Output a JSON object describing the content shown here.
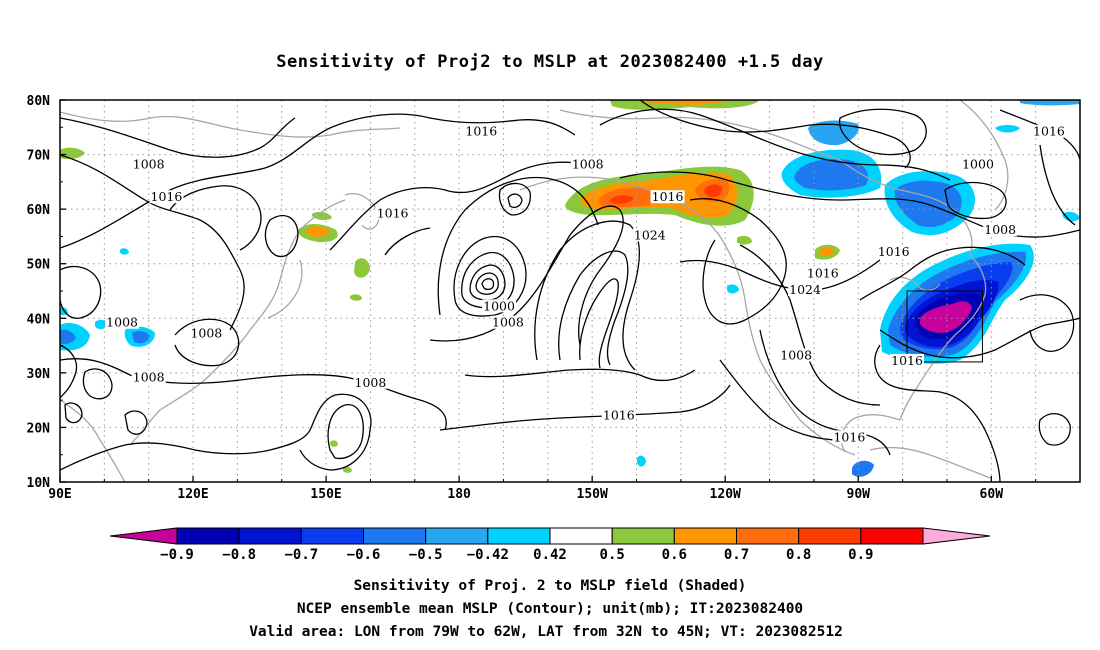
{
  "chart_data": {
    "type": "heatmap",
    "title": "Sensitivity of Proj2 to MSLP at 2023082400 +1.5 day",
    "x_axis": {
      "ticks": [
        "90E",
        "120E",
        "150E",
        "180",
        "150W",
        "120W",
        "90W",
        "60W"
      ],
      "range_lon_east": [
        90,
        320
      ]
    },
    "y_axis": {
      "ticks": [
        "10N",
        "20N",
        "30N",
        "40N",
        "50N",
        "60N",
        "70N",
        "80N"
      ],
      "range_lat": [
        10,
        80
      ]
    },
    "grid": "dotted",
    "colorbar": {
      "placement": "bottom",
      "tick_labels": [
        "-0.9",
        "-0.8",
        "-0.7",
        "-0.6",
        "-0.5",
        "-0.42",
        "0.42",
        "0.5",
        "0.6",
        "0.7",
        "0.8",
        "0.9"
      ],
      "bins": [
        {
          "range": "< -0.9",
          "color": "#c8009c"
        },
        {
          "range": "-0.9 to -0.8",
          "color": "#0000b4"
        },
        {
          "range": "-0.8 to -0.7",
          "color": "#0014d2"
        },
        {
          "range": "-0.7 to -0.6",
          "color": "#0a3cf0"
        },
        {
          "range": "-0.6 to -0.5",
          "color": "#1e78f0"
        },
        {
          "range": "-0.5 to -0.42",
          "color": "#28a5f0"
        },
        {
          "range": "-0.42 to 0.42",
          "color": "#00d2ff"
        },
        {
          "range": "0.42 to 0.5",
          "color": "#ffffff"
        },
        {
          "range": "0.5 to 0.6",
          "color": "#8cc83c"
        },
        {
          "range": "0.6 to 0.7",
          "color": "#ff9600"
        },
        {
          "range": "0.7 to 0.8",
          "color": "#ff6e0a"
        },
        {
          "range": "0.8 to 0.9",
          "color": "#ff3c00"
        },
        {
          "range": "> 0.9",
          "color": "#ff0000"
        },
        {
          "range": "extreme",
          "color": "#ffaadc"
        }
      ]
    },
    "contour_labels": [
      {
        "text": "1016",
        "lon": 185,
        "lat": 74
      },
      {
        "text": "1008",
        "lon": 110,
        "lat": 68
      },
      {
        "text": "1016",
        "lon": 114,
        "lat": 62
      },
      {
        "text": "1016",
        "lon": 165,
        "lat": 59
      },
      {
        "text": "1008",
        "lon": 209,
        "lat": 68
      },
      {
        "text": "1016",
        "lon": 227,
        "lat": 62
      },
      {
        "text": "1024",
        "lon": 223,
        "lat": 55
      },
      {
        "text": "1000",
        "lon": 297,
        "lat": 68
      },
      {
        "text": "1016",
        "lon": 313,
        "lat": 74
      },
      {
        "text": "1008",
        "lon": 302,
        "lat": 56
      },
      {
        "text": "1016",
        "lon": 278,
        "lat": 52
      },
      {
        "text": "1016",
        "lon": 262,
        "lat": 48
      },
      {
        "text": "1024",
        "lon": 258,
        "lat": 45
      },
      {
        "text": "1000",
        "lon": 189,
        "lat": 42
      },
      {
        "text": "1008",
        "lon": 191,
        "lat": 39
      },
      {
        "text": "1008",
        "lon": 104,
        "lat": 39
      },
      {
        "text": "1008",
        "lon": 123,
        "lat": 37
      },
      {
        "text": "1008",
        "lon": 110,
        "lat": 29
      },
      {
        "text": "1008",
        "lon": 160,
        "lat": 28
      },
      {
        "text": "1008",
        "lon": 256,
        "lat": 33
      },
      {
        "text": "1016",
        "lon": 281,
        "lat": 32
      },
      {
        "text": "1016",
        "lon": 216,
        "lat": 22
      },
      {
        "text": "1016",
        "lon": 268,
        "lat": 18
      }
    ],
    "valid_area": {
      "lon": [
        281,
        298
      ],
      "lat": [
        32,
        45
      ]
    }
  },
  "footer": {
    "line1": "Sensitivity of Proj. 2 to MSLP field (Shaded)",
    "line2": "NCEP ensemble mean MSLP (Contour); unit(mb); IT:2023082400",
    "line3": "Valid area: LON from 79W to 62W, LAT from 32N to 45N; VT: 2023082512"
  }
}
